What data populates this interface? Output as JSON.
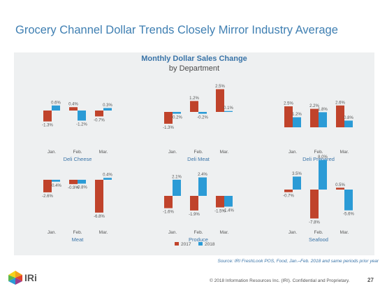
{
  "title": "Grocery Channel Dollar Trends Closely Mirror Industry Average",
  "chart_title": "Monthly Dollar Sales Change",
  "chart_subtitle": "by Department",
  "colors": {
    "2017": "#c0432b",
    "2018": "#2b9bd6"
  },
  "chart_data": [
    {
      "type": "bar",
      "title": "Deli Cheese",
      "categories": [
        "Jan.",
        "Feb.",
        "Mar."
      ],
      "series": [
        {
          "name": "2017",
          "values": [
            -1.3,
            0.4,
            -0.7
          ]
        },
        {
          "name": "2018",
          "values": [
            0.6,
            -1.2,
            0.3
          ]
        }
      ],
      "value_unit": "%"
    },
    {
      "type": "bar",
      "title": "Deli Meat",
      "categories": [
        "Jan.",
        "Feb.",
        "Mar."
      ],
      "series": [
        {
          "name": "2017",
          "values": [
            -1.3,
            1.2,
            2.5
          ]
        },
        {
          "name": "2018",
          "values": [
            -0.2,
            -0.2,
            0.1
          ]
        }
      ],
      "value_unit": "%"
    },
    {
      "type": "bar",
      "title": "Deli Prepared",
      "categories": [
        "Jan.",
        "Feb.",
        "Mar."
      ],
      "series": [
        {
          "name": "2017",
          "values": [
            2.5,
            2.2,
            2.6
          ]
        },
        {
          "name": "2018",
          "values": [
            1.2,
            1.8,
            0.8
          ]
        }
      ],
      "value_unit": "%"
    },
    {
      "type": "bar",
      "title": "Meat",
      "categories": [
        "Jan.",
        "Feb.",
        "Mar."
      ],
      "series": [
        {
          "name": "2017",
          "values": [
            -2.6,
            -0.9,
            -6.8
          ]
        },
        {
          "name": "2018",
          "values": [
            -0.4,
            -0.8,
            0.4
          ]
        }
      ],
      "value_unit": "%"
    },
    {
      "type": "bar",
      "title": "Produce",
      "categories": [
        "Jan.",
        "Feb.",
        "Mar."
      ],
      "series": [
        {
          "name": "2017",
          "values": [
            -1.6,
            -1.9,
            -1.5
          ]
        },
        {
          "name": "2018",
          "values": [
            2.1,
            2.4,
            -1.4
          ]
        }
      ],
      "value_unit": "%"
    },
    {
      "type": "bar",
      "title": "Seafood",
      "categories": [
        "Jan.",
        "Feb.",
        "Mar."
      ],
      "series": [
        {
          "name": "2017",
          "values": [
            -0.7,
            -7.8,
            0.5
          ]
        },
        {
          "name": "2018",
          "values": [
            3.5,
            8.0,
            -5.6
          ]
        }
      ],
      "value_unit": "%"
    }
  ],
  "legend": {
    "items": [
      "2017",
      "2018"
    ],
    "placement": "bottom-center"
  },
  "source": "Source: IRI FreshLook POS, Food, Jan.–Feb. 2018 and same periods prior year",
  "logo_text": "IRi",
  "footer": "© 2018 Information Resources Inc. (IRI). Confidential and Proprietary.",
  "page_number": "27"
}
